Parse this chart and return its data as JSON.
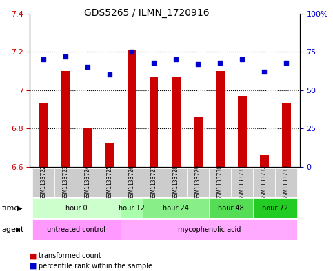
{
  "title": "GDS5265 / ILMN_1720916",
  "samples": [
    "GSM1133722",
    "GSM1133723",
    "GSM1133724",
    "GSM1133725",
    "GSM1133726",
    "GSM1133727",
    "GSM1133728",
    "GSM1133729",
    "GSM1133730",
    "GSM1133731",
    "GSM1133732",
    "GSM1133733"
  ],
  "bar_values": [
    6.93,
    7.1,
    6.8,
    6.72,
    7.21,
    7.07,
    7.07,
    6.86,
    7.1,
    6.97,
    6.66,
    6.93
  ],
  "dot_values": [
    70,
    72,
    65,
    60,
    75,
    68,
    70,
    67,
    68,
    70,
    62,
    68
  ],
  "bar_base": 6.6,
  "ylim_left": [
    6.6,
    7.4
  ],
  "ylim_right": [
    0,
    100
  ],
  "yticks_left": [
    6.6,
    6.8,
    7.0,
    7.2,
    7.4
  ],
  "yticks_left_labels": [
    "6.6",
    "6.8",
    "7",
    "7.2",
    "7.4"
  ],
  "yticks_right": [
    0,
    25,
    50,
    75,
    100
  ],
  "yticks_right_labels": [
    "0",
    "25",
    "50",
    "75",
    "100%"
  ],
  "grid_lines": [
    6.8,
    7.0,
    7.2
  ],
  "bar_color": "#cc0000",
  "dot_color": "#0000cc",
  "time_groups": [
    {
      "label": "hour 0",
      "start": 0,
      "end": 4,
      "color": "#ccffcc"
    },
    {
      "label": "hour 12",
      "start": 4,
      "end": 5,
      "color": "#aaffaa"
    },
    {
      "label": "hour 24",
      "start": 5,
      "end": 8,
      "color": "#88ee88"
    },
    {
      "label": "hour 48",
      "start": 8,
      "end": 10,
      "color": "#55dd55"
    },
    {
      "label": "hour 72",
      "start": 10,
      "end": 12,
      "color": "#22cc22"
    }
  ],
  "agent_groups": [
    {
      "label": "untreated control",
      "start": 0,
      "end": 4,
      "color": "#ff99ff"
    },
    {
      "label": "mycophenolic acid",
      "start": 4,
      "end": 12,
      "color": "#ffaaff"
    }
  ],
  "legend_bar_label": "transformed count",
  "legend_dot_label": "percentile rank within the sample",
  "background_color": "#ffffff"
}
